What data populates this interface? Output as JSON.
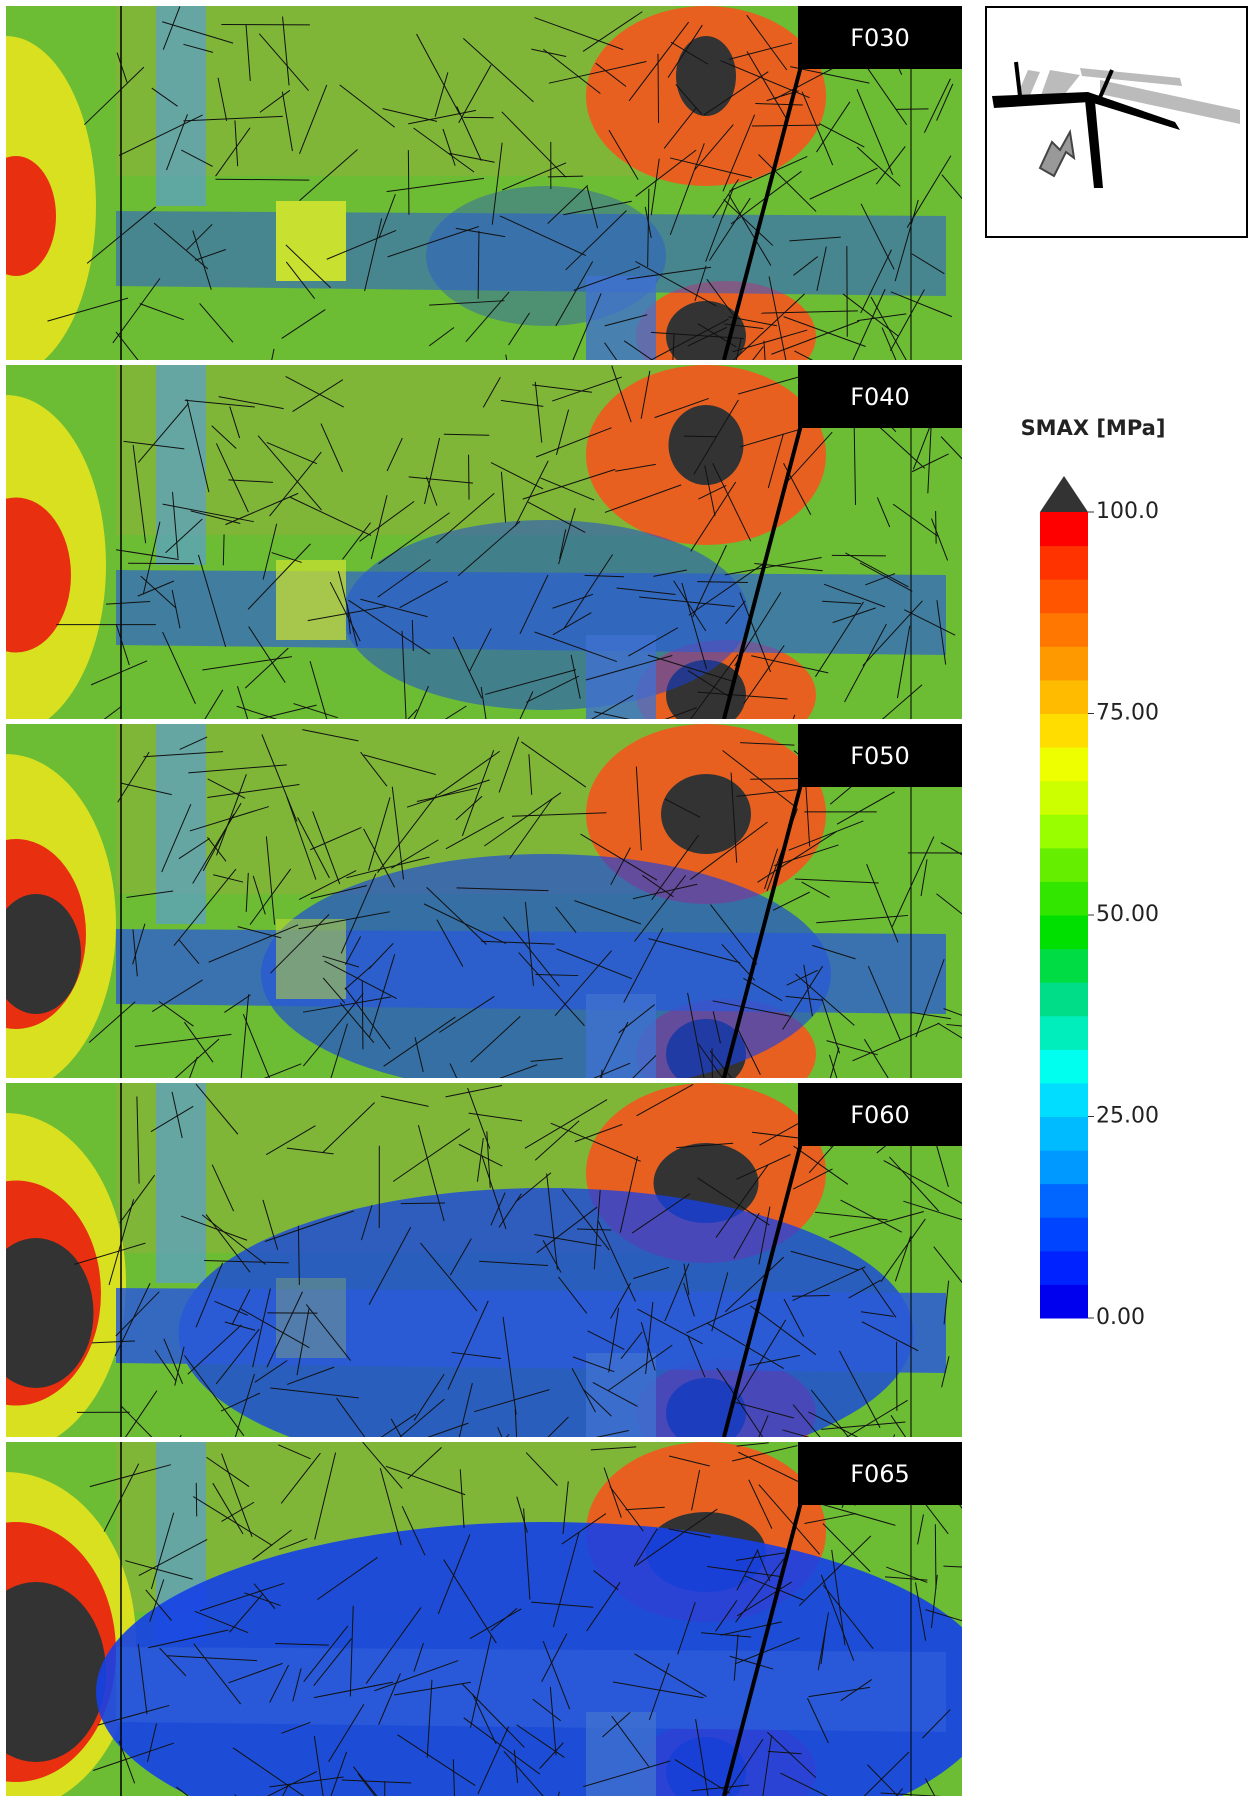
{
  "panels": [
    {
      "label": "F030"
    },
    {
      "label": "F040"
    },
    {
      "label": "F050"
    },
    {
      "label": "F060"
    },
    {
      "label": "F065"
    }
  ],
  "legend": {
    "title": "SMAX [MPa]",
    "range": [
      0,
      100
    ],
    "ticks": [
      {
        "value": 100,
        "label": "100.0"
      },
      {
        "value": 75,
        "label": "75.00"
      },
      {
        "value": 50,
        "label": "50.00"
      },
      {
        "value": 25,
        "label": "25.00"
      },
      {
        "value": 0,
        "label": "0.00"
      }
    ],
    "colors": [
      "#0000ee",
      "#0022ff",
      "#0044ff",
      "#0066ff",
      "#0099ff",
      "#00bbff",
      "#00ddff",
      "#00ffee",
      "#00eebb",
      "#00dd88",
      "#00dd44",
      "#00e000",
      "#33e600",
      "#66ee00",
      "#99ff00",
      "#ccff00",
      "#eeff00",
      "#ffdd00",
      "#ffbb00",
      "#ff9900",
      "#ff7700",
      "#ff5500",
      "#ff3300",
      "#ff0000"
    ],
    "over_color": "#333333"
  }
}
